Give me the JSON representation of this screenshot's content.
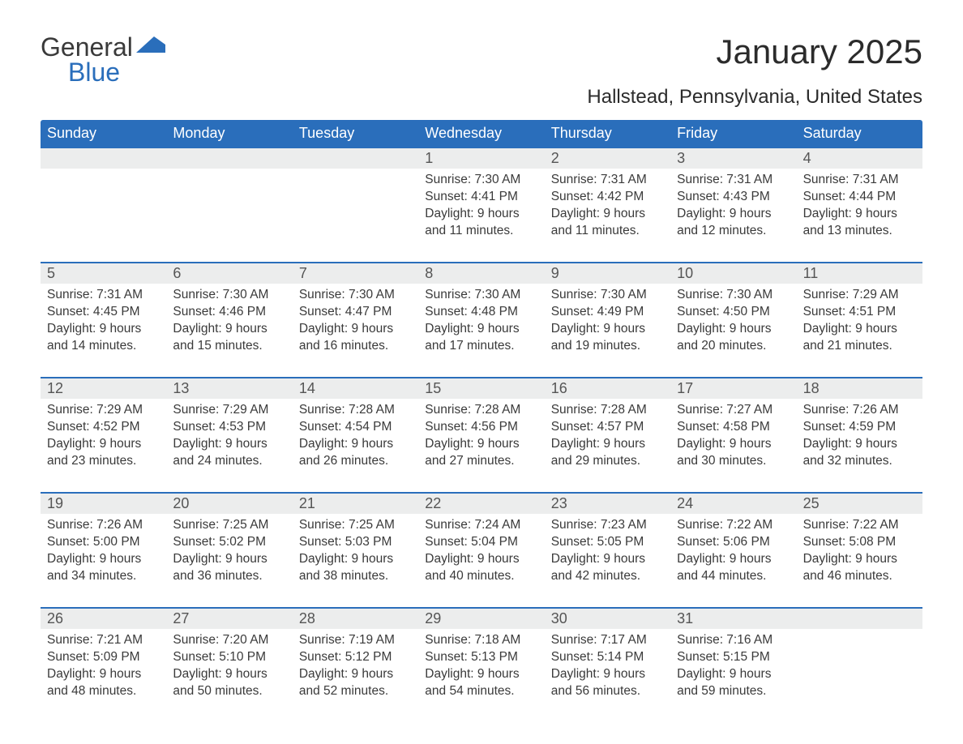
{
  "brand": {
    "part1": "General",
    "part2": "Blue"
  },
  "colors": {
    "header_bg": "#2a6ebb",
    "header_text": "#ffffff",
    "daynum_bg": "#eceded",
    "text": "#3a3a3a",
    "border": "#2a6ebb",
    "background": "#ffffff"
  },
  "title": "January 2025",
  "location": "Hallstead, Pennsylvania, United States",
  "weekdays": [
    "Sunday",
    "Monday",
    "Tuesday",
    "Wednesday",
    "Thursday",
    "Friday",
    "Saturday"
  ],
  "weeks": [
    [
      {
        "day": "",
        "sunrise": "",
        "sunset": "",
        "daylight": ""
      },
      {
        "day": "",
        "sunrise": "",
        "sunset": "",
        "daylight": ""
      },
      {
        "day": "",
        "sunrise": "",
        "sunset": "",
        "daylight": ""
      },
      {
        "day": "1",
        "sunrise": "Sunrise: 7:30 AM",
        "sunset": "Sunset: 4:41 PM",
        "daylight": "Daylight: 9 hours and 11 minutes."
      },
      {
        "day": "2",
        "sunrise": "Sunrise: 7:31 AM",
        "sunset": "Sunset: 4:42 PM",
        "daylight": "Daylight: 9 hours and 11 minutes."
      },
      {
        "day": "3",
        "sunrise": "Sunrise: 7:31 AM",
        "sunset": "Sunset: 4:43 PM",
        "daylight": "Daylight: 9 hours and 12 minutes."
      },
      {
        "day": "4",
        "sunrise": "Sunrise: 7:31 AM",
        "sunset": "Sunset: 4:44 PM",
        "daylight": "Daylight: 9 hours and 13 minutes."
      }
    ],
    [
      {
        "day": "5",
        "sunrise": "Sunrise: 7:31 AM",
        "sunset": "Sunset: 4:45 PM",
        "daylight": "Daylight: 9 hours and 14 minutes."
      },
      {
        "day": "6",
        "sunrise": "Sunrise: 7:30 AM",
        "sunset": "Sunset: 4:46 PM",
        "daylight": "Daylight: 9 hours and 15 minutes."
      },
      {
        "day": "7",
        "sunrise": "Sunrise: 7:30 AM",
        "sunset": "Sunset: 4:47 PM",
        "daylight": "Daylight: 9 hours and 16 minutes."
      },
      {
        "day": "8",
        "sunrise": "Sunrise: 7:30 AM",
        "sunset": "Sunset: 4:48 PM",
        "daylight": "Daylight: 9 hours and 17 minutes."
      },
      {
        "day": "9",
        "sunrise": "Sunrise: 7:30 AM",
        "sunset": "Sunset: 4:49 PM",
        "daylight": "Daylight: 9 hours and 19 minutes."
      },
      {
        "day": "10",
        "sunrise": "Sunrise: 7:30 AM",
        "sunset": "Sunset: 4:50 PM",
        "daylight": "Daylight: 9 hours and 20 minutes."
      },
      {
        "day": "11",
        "sunrise": "Sunrise: 7:29 AM",
        "sunset": "Sunset: 4:51 PM",
        "daylight": "Daylight: 9 hours and 21 minutes."
      }
    ],
    [
      {
        "day": "12",
        "sunrise": "Sunrise: 7:29 AM",
        "sunset": "Sunset: 4:52 PM",
        "daylight": "Daylight: 9 hours and 23 minutes."
      },
      {
        "day": "13",
        "sunrise": "Sunrise: 7:29 AM",
        "sunset": "Sunset: 4:53 PM",
        "daylight": "Daylight: 9 hours and 24 minutes."
      },
      {
        "day": "14",
        "sunrise": "Sunrise: 7:28 AM",
        "sunset": "Sunset: 4:54 PM",
        "daylight": "Daylight: 9 hours and 26 minutes."
      },
      {
        "day": "15",
        "sunrise": "Sunrise: 7:28 AM",
        "sunset": "Sunset: 4:56 PM",
        "daylight": "Daylight: 9 hours and 27 minutes."
      },
      {
        "day": "16",
        "sunrise": "Sunrise: 7:28 AM",
        "sunset": "Sunset: 4:57 PM",
        "daylight": "Daylight: 9 hours and 29 minutes."
      },
      {
        "day": "17",
        "sunrise": "Sunrise: 7:27 AM",
        "sunset": "Sunset: 4:58 PM",
        "daylight": "Daylight: 9 hours and 30 minutes."
      },
      {
        "day": "18",
        "sunrise": "Sunrise: 7:26 AM",
        "sunset": "Sunset: 4:59 PM",
        "daylight": "Daylight: 9 hours and 32 minutes."
      }
    ],
    [
      {
        "day": "19",
        "sunrise": "Sunrise: 7:26 AM",
        "sunset": "Sunset: 5:00 PM",
        "daylight": "Daylight: 9 hours and 34 minutes."
      },
      {
        "day": "20",
        "sunrise": "Sunrise: 7:25 AM",
        "sunset": "Sunset: 5:02 PM",
        "daylight": "Daylight: 9 hours and 36 minutes."
      },
      {
        "day": "21",
        "sunrise": "Sunrise: 7:25 AM",
        "sunset": "Sunset: 5:03 PM",
        "daylight": "Daylight: 9 hours and 38 minutes."
      },
      {
        "day": "22",
        "sunrise": "Sunrise: 7:24 AM",
        "sunset": "Sunset: 5:04 PM",
        "daylight": "Daylight: 9 hours and 40 minutes."
      },
      {
        "day": "23",
        "sunrise": "Sunrise: 7:23 AM",
        "sunset": "Sunset: 5:05 PM",
        "daylight": "Daylight: 9 hours and 42 minutes."
      },
      {
        "day": "24",
        "sunrise": "Sunrise: 7:22 AM",
        "sunset": "Sunset: 5:06 PM",
        "daylight": "Daylight: 9 hours and 44 minutes."
      },
      {
        "day": "25",
        "sunrise": "Sunrise: 7:22 AM",
        "sunset": "Sunset: 5:08 PM",
        "daylight": "Daylight: 9 hours and 46 minutes."
      }
    ],
    [
      {
        "day": "26",
        "sunrise": "Sunrise: 7:21 AM",
        "sunset": "Sunset: 5:09 PM",
        "daylight": "Daylight: 9 hours and 48 minutes."
      },
      {
        "day": "27",
        "sunrise": "Sunrise: 7:20 AM",
        "sunset": "Sunset: 5:10 PM",
        "daylight": "Daylight: 9 hours and 50 minutes."
      },
      {
        "day": "28",
        "sunrise": "Sunrise: 7:19 AM",
        "sunset": "Sunset: 5:12 PM",
        "daylight": "Daylight: 9 hours and 52 minutes."
      },
      {
        "day": "29",
        "sunrise": "Sunrise: 7:18 AM",
        "sunset": "Sunset: 5:13 PM",
        "daylight": "Daylight: 9 hours and 54 minutes."
      },
      {
        "day": "30",
        "sunrise": "Sunrise: 7:17 AM",
        "sunset": "Sunset: 5:14 PM",
        "daylight": "Daylight: 9 hours and 56 minutes."
      },
      {
        "day": "31",
        "sunrise": "Sunrise: 7:16 AM",
        "sunset": "Sunset: 5:15 PM",
        "daylight": "Daylight: 9 hours and 59 minutes."
      },
      {
        "day": "",
        "sunrise": "",
        "sunset": "",
        "daylight": ""
      }
    ]
  ]
}
